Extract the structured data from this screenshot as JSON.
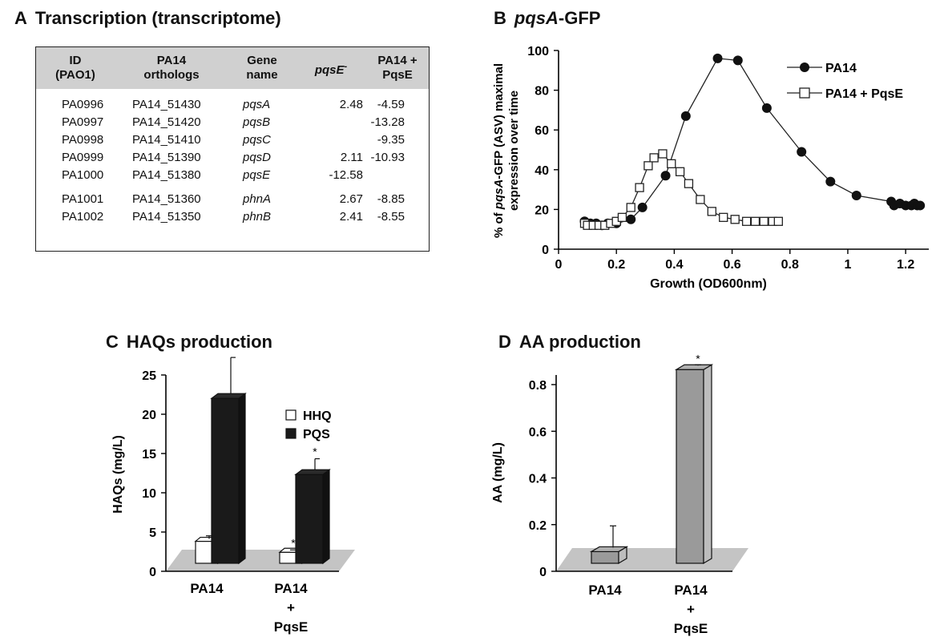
{
  "panelA": {
    "letter": "A",
    "title": "Transcription (transcriptome)",
    "headers": [
      [
        "ID",
        "(PAO1)"
      ],
      [
        "PA14",
        "orthologs"
      ],
      [
        "Gene",
        "name"
      ],
      [
        "pqsE",
        "-"
      ],
      [
        "PA14 +",
        "PqsE"
      ]
    ],
    "rows": [
      [
        "PA0996",
        "PA14_51430",
        "pqsA",
        "2.48",
        "-4.59"
      ],
      [
        "PA0997",
        "PA14_51420",
        "pqsB",
        "",
        "-13.28"
      ],
      [
        "PA0998",
        "PA14_51410",
        "pqsC",
        "",
        "-9.35"
      ],
      [
        "PA0999",
        "PA14_51390",
        "pqsD",
        "2.11",
        "-10.93"
      ],
      [
        "PA1000",
        "PA14_51380",
        "pqsE",
        "-12.58",
        ""
      ],
      [
        "PA1001",
        "PA14_51360",
        "phnA",
        "2.67",
        "-8.85"
      ],
      [
        "PA1002",
        "PA14_51350",
        "phnB",
        "2.41",
        "-8.55"
      ]
    ]
  },
  "chart_data": [
    {
      "type": "line",
      "letter": "B",
      "title_italic": "pqsA",
      "title_rest": "-GFP",
      "xlabel": "Growth (OD600nm)",
      "ylabel_italic": "pqsA",
      "ylabel_pre": "% of ",
      "ylabel_post": "-GFP (ASV) maximal",
      "ylabel_line2": "expression over time",
      "xlim": [
        0,
        1.28
      ],
      "ylim": [
        0,
        100
      ],
      "xticks": [
        "0",
        "0.2",
        "0.4",
        "0.6",
        "0.8",
        "1",
        "1.2"
      ],
      "yticks": [
        "0",
        "20",
        "40",
        "60",
        "80",
        "100"
      ],
      "legend_position": "top-right",
      "series": [
        {
          "name": "PA14",
          "marker": "filled-circle",
          "x": [
            0.09,
            0.1,
            0.11,
            0.13,
            0.15,
            0.17,
            0.2,
            0.25,
            0.29,
            0.37,
            0.44,
            0.55,
            0.62,
            0.72,
            0.84,
            0.94,
            1.03,
            1.15,
            1.16,
            1.18,
            1.2,
            1.22,
            1.23,
            1.24,
            1.25
          ],
          "y": [
            14,
            13,
            13,
            13,
            12,
            13,
            13,
            15,
            21,
            37,
            67,
            96,
            95,
            71,
            49,
            34,
            27,
            24,
            22,
            23,
            22,
            22,
            23,
            22,
            22
          ]
        },
        {
          "name": "PA14 + PqsE",
          "marker": "open-square",
          "x": [
            0.09,
            0.1,
            0.12,
            0.14,
            0.16,
            0.18,
            0.2,
            0.22,
            0.25,
            0.28,
            0.31,
            0.33,
            0.36,
            0.39,
            0.42,
            0.45,
            0.49,
            0.53,
            0.57,
            0.61,
            0.65,
            0.68,
            0.71,
            0.74,
            0.76
          ],
          "y": [
            13,
            12,
            12,
            12,
            12,
            13,
            14,
            16,
            21,
            31,
            42,
            46,
            48,
            43,
            39,
            33,
            25,
            19,
            16,
            15,
            14,
            14,
            14,
            14,
            14
          ]
        }
      ]
    },
    {
      "type": "bar",
      "letter": "C",
      "title": "HAQs production",
      "ylabel": "HAQs (mg/L)",
      "ylim": [
        0,
        25
      ],
      "yticks": [
        "0",
        "5",
        "10",
        "15",
        "20",
        "25"
      ],
      "categories": [
        [
          "PA14"
        ],
        [
          "PA14",
          "+",
          "PqsE"
        ]
      ],
      "legend_position": "top-right",
      "series": [
        {
          "name": "HHQ",
          "color": "#ffffff",
          "values": [
            2.8,
            1.4
          ],
          "errors": [
            0.7,
            0.3
          ],
          "significance": [
            "",
            "*"
          ]
        },
        {
          "name": "PQS",
          "color": "#1a1a1a",
          "values": [
            21.0,
            11.3
          ],
          "errors": [
            4.6,
            1.4
          ],
          "significance": [
            "",
            "*"
          ]
        }
      ]
    },
    {
      "type": "bar",
      "letter": "D",
      "title": "AA production",
      "ylabel": "AA (mg/L)",
      "ylim": [
        0,
        0.8
      ],
      "yticks": [
        "0",
        "0.2",
        "0.4",
        "0.6",
        "0.8"
      ],
      "categories": [
        [
          "PA14"
        ],
        [
          "PA14",
          "+",
          "PqsE"
        ]
      ],
      "series": [
        {
          "name": "",
          "color": "#9a9a9a",
          "values": [
            0.05,
            0.83
          ],
          "errors": [
            0.1,
            0.01
          ],
          "significance": [
            "",
            "*"
          ]
        }
      ]
    }
  ]
}
